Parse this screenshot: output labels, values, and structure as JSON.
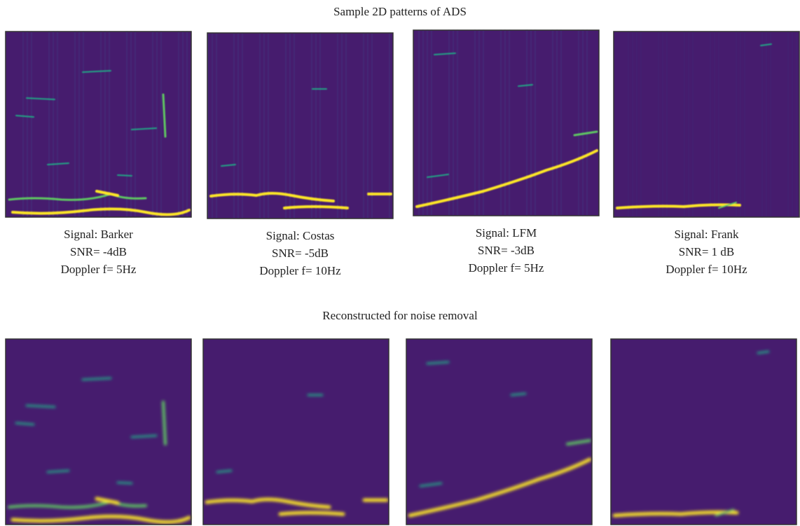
{
  "top": {
    "title": "Sample 2D patterns of ADS",
    "panels": [
      {
        "caption": [
          "Signal: Barker",
          "SNR= -4dB",
          "Doppler f= 5Hz"
        ]
      },
      {
        "caption": [
          "Signal: Costas",
          "SNR= -5dB",
          "Doppler f= 10Hz"
        ]
      },
      {
        "caption": [
          "Signal: LFM",
          "SNR= -3dB",
          "Doppler f= 5Hz"
        ]
      },
      {
        "caption": [
          "Signal: Frank",
          "SNR= 1 dB",
          "Doppler f= 10Hz"
        ]
      }
    ]
  },
  "bottom": {
    "title": "Reconstructed for noise removal"
  }
}
